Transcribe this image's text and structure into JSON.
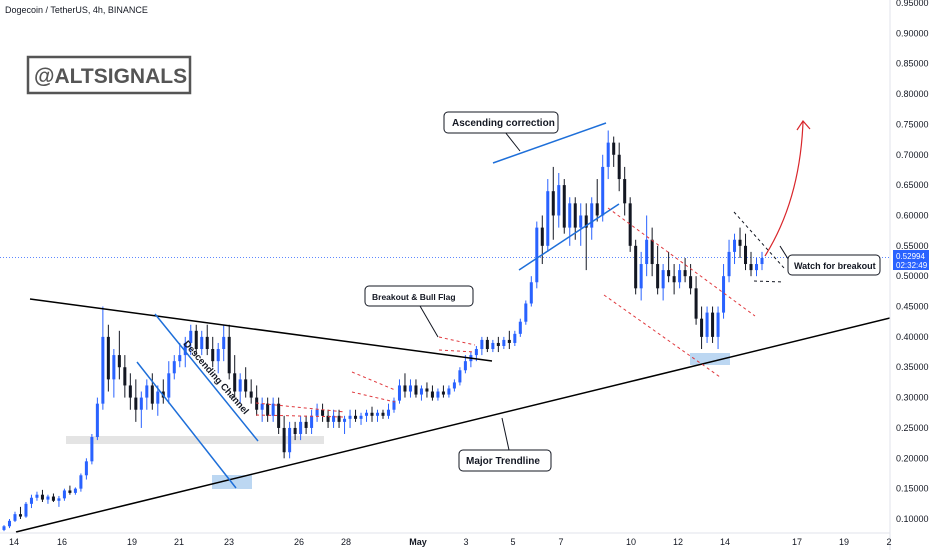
{
  "chart_data": {
    "type": "candlestick",
    "title": "Dogecoin / TetherUS, 4h, BINANCE",
    "watermark": "@ALTSIGNALS",
    "price_label": "0.52994",
    "countdown_label": "02:32:49",
    "x_ticks": [
      "14",
      "16",
      "19",
      "21",
      "23",
      "26",
      "28",
      "May",
      "3",
      "5",
      "7",
      "10",
      "12",
      "14",
      "17",
      "19",
      "2"
    ],
    "y_ticks": [
      "0.95000",
      "0.90000",
      "0.85000",
      "0.80000",
      "0.75000",
      "0.70000",
      "0.65000",
      "0.60000",
      "0.55000",
      "0.50000",
      "0.45000",
      "0.40000",
      "0.35000",
      "0.30000",
      "0.25000",
      "0.20000",
      "0.15000",
      "0.10000"
    ],
    "y_ticks_values": [
      0.95,
      0.9,
      0.85,
      0.8,
      0.75,
      0.7,
      0.65,
      0.6,
      0.55,
      0.5,
      0.45,
      0.4,
      0.35,
      0.3,
      0.25,
      0.2,
      0.15,
      0.1
    ],
    "ylim": [
      0.07,
      0.96
    ],
    "current_price": 0.52994,
    "colors": {
      "up": "#2962ff",
      "down": "#131722",
      "trendline": "#000000",
      "channel": "#1e6fd9",
      "dashed": "#e0393e",
      "arrow": "#d9262b",
      "zone": "#bcd7f2",
      "support": "#d9d9d9",
      "price_tag": "#2962ff"
    },
    "annotations": [
      {
        "text": "Ascending correction"
      },
      {
        "text": "Breakout & Bull Flag"
      },
      {
        "text": "Descending Channel"
      },
      {
        "text": "Major Trendline"
      },
      {
        "text": "Watch for breakout"
      }
    ],
    "candles": [
      [
        0.082,
        0.09,
        0.08,
        0.088
      ],
      [
        0.088,
        0.1,
        0.085,
        0.097
      ],
      [
        0.097,
        0.112,
        0.095,
        0.108
      ],
      [
        0.108,
        0.12,
        0.1,
        0.104
      ],
      [
        0.104,
        0.128,
        0.102,
        0.125
      ],
      [
        0.125,
        0.14,
        0.118,
        0.135
      ],
      [
        0.135,
        0.145,
        0.13,
        0.14
      ],
      [
        0.14,
        0.148,
        0.128,
        0.132
      ],
      [
        0.132,
        0.14,
        0.125,
        0.137
      ],
      [
        0.137,
        0.142,
        0.128,
        0.13
      ],
      [
        0.13,
        0.138,
        0.12,
        0.134
      ],
      [
        0.134,
        0.15,
        0.13,
        0.147
      ],
      [
        0.147,
        0.155,
        0.14,
        0.143
      ],
      [
        0.143,
        0.152,
        0.14,
        0.15
      ],
      [
        0.15,
        0.175,
        0.145,
        0.172
      ],
      [
        0.172,
        0.2,
        0.165,
        0.195
      ],
      [
        0.195,
        0.24,
        0.19,
        0.235
      ],
      [
        0.235,
        0.3,
        0.23,
        0.29
      ],
      [
        0.29,
        0.45,
        0.28,
        0.4
      ],
      [
        0.4,
        0.42,
        0.31,
        0.33
      ],
      [
        0.33,
        0.38,
        0.3,
        0.37
      ],
      [
        0.37,
        0.41,
        0.33,
        0.35
      ],
      [
        0.35,
        0.37,
        0.3,
        0.32
      ],
      [
        0.32,
        0.34,
        0.28,
        0.3
      ],
      [
        0.3,
        0.33,
        0.26,
        0.28
      ],
      [
        0.28,
        0.31,
        0.25,
        0.3
      ],
      [
        0.3,
        0.33,
        0.28,
        0.32
      ],
      [
        0.32,
        0.34,
        0.28,
        0.29
      ],
      [
        0.29,
        0.32,
        0.27,
        0.31
      ],
      [
        0.31,
        0.33,
        0.29,
        0.3
      ],
      [
        0.3,
        0.36,
        0.29,
        0.34
      ],
      [
        0.34,
        0.37,
        0.33,
        0.36
      ],
      [
        0.36,
        0.39,
        0.35,
        0.37
      ],
      [
        0.37,
        0.4,
        0.35,
        0.39
      ],
      [
        0.39,
        0.42,
        0.37,
        0.41
      ],
      [
        0.41,
        0.42,
        0.37,
        0.38
      ],
      [
        0.38,
        0.41,
        0.37,
        0.4
      ],
      [
        0.4,
        0.42,
        0.37,
        0.38
      ],
      [
        0.38,
        0.4,
        0.35,
        0.36
      ],
      [
        0.36,
        0.39,
        0.34,
        0.38
      ],
      [
        0.38,
        0.42,
        0.36,
        0.4
      ],
      [
        0.4,
        0.42,
        0.33,
        0.34
      ],
      [
        0.34,
        0.37,
        0.3,
        0.31
      ],
      [
        0.31,
        0.34,
        0.29,
        0.33
      ],
      [
        0.33,
        0.35,
        0.3,
        0.31
      ],
      [
        0.31,
        0.33,
        0.29,
        0.3
      ],
      [
        0.3,
        0.32,
        0.27,
        0.28
      ],
      [
        0.28,
        0.3,
        0.26,
        0.29
      ],
      [
        0.29,
        0.3,
        0.26,
        0.27
      ],
      [
        0.27,
        0.3,
        0.26,
        0.29
      ],
      [
        0.29,
        0.3,
        0.24,
        0.25
      ],
      [
        0.25,
        0.27,
        0.2,
        0.21
      ],
      [
        0.21,
        0.26,
        0.2,
        0.25
      ],
      [
        0.25,
        0.26,
        0.23,
        0.24
      ],
      [
        0.24,
        0.27,
        0.23,
        0.26
      ],
      [
        0.26,
        0.27,
        0.24,
        0.25
      ],
      [
        0.25,
        0.28,
        0.24,
        0.27
      ],
      [
        0.27,
        0.29,
        0.26,
        0.28
      ],
      [
        0.28,
        0.29,
        0.26,
        0.27
      ],
      [
        0.27,
        0.28,
        0.25,
        0.26
      ],
      [
        0.26,
        0.28,
        0.25,
        0.27
      ],
      [
        0.27,
        0.28,
        0.25,
        0.26
      ],
      [
        0.26,
        0.27,
        0.24,
        0.265
      ],
      [
        0.265,
        0.28,
        0.25,
        0.27
      ],
      [
        0.27,
        0.28,
        0.26,
        0.265
      ],
      [
        0.265,
        0.275,
        0.255,
        0.27
      ],
      [
        0.27,
        0.28,
        0.26,
        0.275
      ],
      [
        0.275,
        0.285,
        0.26,
        0.27
      ],
      [
        0.27,
        0.28,
        0.26,
        0.275
      ],
      [
        0.275,
        0.28,
        0.265,
        0.27
      ],
      [
        0.27,
        0.29,
        0.265,
        0.28
      ],
      [
        0.28,
        0.3,
        0.275,
        0.295
      ],
      [
        0.295,
        0.33,
        0.29,
        0.32
      ],
      [
        0.32,
        0.34,
        0.3,
        0.31
      ],
      [
        0.31,
        0.33,
        0.3,
        0.32
      ],
      [
        0.32,
        0.33,
        0.3,
        0.305
      ],
      [
        0.305,
        0.32,
        0.295,
        0.315
      ],
      [
        0.315,
        0.325,
        0.3,
        0.31
      ],
      [
        0.31,
        0.32,
        0.295,
        0.3
      ],
      [
        0.3,
        0.315,
        0.295,
        0.31
      ],
      [
        0.31,
        0.32,
        0.3,
        0.305
      ],
      [
        0.305,
        0.32,
        0.3,
        0.315
      ],
      [
        0.315,
        0.33,
        0.31,
        0.325
      ],
      [
        0.325,
        0.35,
        0.32,
        0.345
      ],
      [
        0.345,
        0.37,
        0.34,
        0.36
      ],
      [
        0.36,
        0.375,
        0.35,
        0.37
      ],
      [
        0.37,
        0.385,
        0.36,
        0.38
      ],
      [
        0.38,
        0.4,
        0.37,
        0.395
      ],
      [
        0.395,
        0.4,
        0.375,
        0.38
      ],
      [
        0.38,
        0.395,
        0.375,
        0.39
      ],
      [
        0.39,
        0.4,
        0.375,
        0.385
      ],
      [
        0.385,
        0.4,
        0.38,
        0.395
      ],
      [
        0.395,
        0.41,
        0.38,
        0.39
      ],
      [
        0.39,
        0.41,
        0.385,
        0.405
      ],
      [
        0.405,
        0.43,
        0.4,
        0.425
      ],
      [
        0.425,
        0.46,
        0.42,
        0.455
      ],
      [
        0.455,
        0.5,
        0.45,
        0.49
      ],
      [
        0.49,
        0.59,
        0.48,
        0.58
      ],
      [
        0.58,
        0.6,
        0.52,
        0.55
      ],
      [
        0.55,
        0.66,
        0.54,
        0.64
      ],
      [
        0.64,
        0.68,
        0.56,
        0.6
      ],
      [
        0.6,
        0.67,
        0.58,
        0.65
      ],
      [
        0.65,
        0.66,
        0.57,
        0.58
      ],
      [
        0.58,
        0.63,
        0.55,
        0.62
      ],
      [
        0.62,
        0.63,
        0.56,
        0.58
      ],
      [
        0.58,
        0.62,
        0.55,
        0.6
      ],
      [
        0.6,
        0.62,
        0.51,
        0.58
      ],
      [
        0.58,
        0.63,
        0.56,
        0.62
      ],
      [
        0.62,
        0.66,
        0.59,
        0.6
      ],
      [
        0.6,
        0.7,
        0.59,
        0.68
      ],
      [
        0.68,
        0.74,
        0.66,
        0.72
      ],
      [
        0.72,
        0.73,
        0.68,
        0.7
      ],
      [
        0.7,
        0.72,
        0.64,
        0.66
      ],
      [
        0.66,
        0.68,
        0.6,
        0.62
      ],
      [
        0.62,
        0.63,
        0.54,
        0.55
      ],
      [
        0.55,
        0.56,
        0.47,
        0.48
      ],
      [
        0.48,
        0.54,
        0.46,
        0.52
      ],
      [
        0.52,
        0.6,
        0.5,
        0.56
      ],
      [
        0.56,
        0.58,
        0.5,
        0.52
      ],
      [
        0.52,
        0.55,
        0.47,
        0.48
      ],
      [
        0.48,
        0.52,
        0.46,
        0.51
      ],
      [
        0.51,
        0.54,
        0.49,
        0.5
      ],
      [
        0.5,
        0.52,
        0.47,
        0.49
      ],
      [
        0.49,
        0.52,
        0.48,
        0.51
      ],
      [
        0.51,
        0.53,
        0.49,
        0.5
      ],
      [
        0.5,
        0.52,
        0.47,
        0.48
      ],
      [
        0.48,
        0.5,
        0.42,
        0.43
      ],
      [
        0.43,
        0.45,
        0.38,
        0.4
      ],
      [
        0.4,
        0.45,
        0.39,
        0.44
      ],
      [
        0.44,
        0.45,
        0.39,
        0.4
      ],
      [
        0.4,
        0.45,
        0.38,
        0.44
      ],
      [
        0.44,
        0.52,
        0.43,
        0.5
      ],
      [
        0.5,
        0.56,
        0.49,
        0.54
      ],
      [
        0.54,
        0.57,
        0.52,
        0.56
      ],
      [
        0.56,
        0.58,
        0.53,
        0.55
      ],
      [
        0.55,
        0.57,
        0.51,
        0.52
      ],
      [
        0.52,
        0.54,
        0.5,
        0.51
      ],
      [
        0.51,
        0.53,
        0.5,
        0.52
      ],
      [
        0.52,
        0.54,
        0.51,
        0.53
      ]
    ]
  }
}
